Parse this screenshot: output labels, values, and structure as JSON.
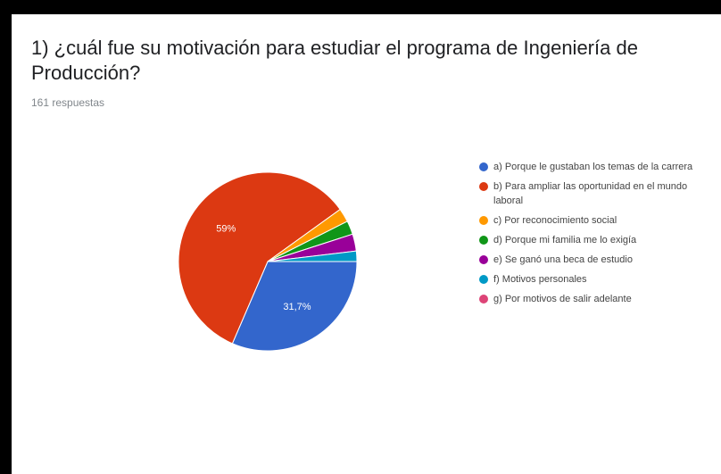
{
  "title": "1) ¿cuál fue su motivación para estudiar el programa de Ingeniería de Producción?",
  "subtitle": "161 respuestas",
  "chart_data": {
    "type": "pie",
    "title": "1) ¿cuál fue su motivación para estudiar el programa de Ingeniería de Producción?",
    "subtitle": "161 respuestas",
    "categories": [
      "a) Porque le gustaban los temas de la carrera",
      "b) Para ampliar las oportunidad en el mundo laboral",
      "c) Por reconocimiento social",
      "d) Porque mi familia me lo exigía",
      "e) Se ganó una beca de estudio",
      "f) Motivos personales",
      "g) Por motivos de salir adelante"
    ],
    "values": [
      31.7,
      59,
      2.5,
      2.5,
      3.1,
      1.9,
      0
    ],
    "colors": [
      "#3366cc",
      "#dc3912",
      "#ff9900",
      "#109618",
      "#990099",
      "#0099c6",
      "#dd4477"
    ],
    "data_labels": [
      "31,7%",
      "59%",
      "",
      "",
      "",
      "",
      ""
    ],
    "legend_position": "right"
  }
}
